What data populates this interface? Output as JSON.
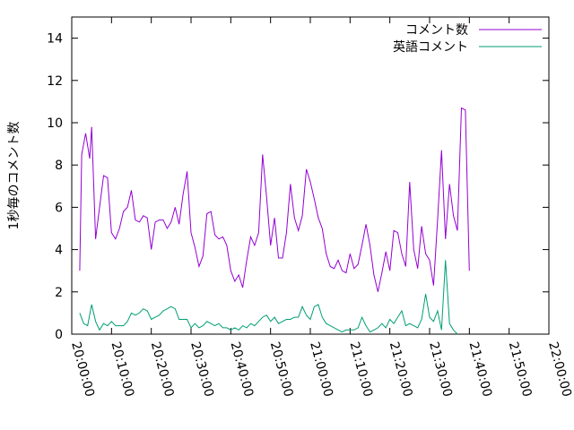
{
  "chart_data": {
    "type": "line",
    "ylabel": "1秒毎のコメント数",
    "xlabel": "",
    "title": "",
    "xlim": [
      "20:00:00",
      "22:00:00"
    ],
    "ylim": [
      0,
      15
    ],
    "x_ticks": [
      "20:00:00",
      "20:10:00",
      "20:20:00",
      "20:30:00",
      "20:40:00",
      "20:50:00",
      "21:00:00",
      "21:10:00",
      "21:20:00",
      "21:30:00",
      "21:40:00",
      "21:50:00",
      "22:00:00"
    ],
    "y_ticks": [
      0,
      2,
      4,
      6,
      8,
      10,
      12,
      14
    ],
    "grid": false,
    "legend_position": "top-right",
    "series": [
      {
        "name": "コメント数",
        "color": "#9400d3",
        "points": [
          [
            "20:02:00",
            3.0
          ],
          [
            "20:02:30",
            8.5
          ],
          [
            "20:03:30",
            9.5
          ],
          [
            "20:04:30",
            8.3
          ],
          [
            "20:05:00",
            9.8
          ],
          [
            "20:06:00",
            4.5
          ],
          [
            "20:07:00",
            6.0
          ],
          [
            "20:08:00",
            7.5
          ],
          [
            "20:09:00",
            7.4
          ],
          [
            "20:10:00",
            4.8
          ],
          [
            "20:11:00",
            4.5
          ],
          [
            "20:12:00",
            5.0
          ],
          [
            "20:13:00",
            5.8
          ],
          [
            "20:14:00",
            6.0
          ],
          [
            "20:15:00",
            6.8
          ],
          [
            "20:16:00",
            5.4
          ],
          [
            "20:17:00",
            5.3
          ],
          [
            "20:18:00",
            5.6
          ],
          [
            "20:19:00",
            5.5
          ],
          [
            "20:20:00",
            4.0
          ],
          [
            "20:21:00",
            5.3
          ],
          [
            "20:22:00",
            5.4
          ],
          [
            "20:23:00",
            5.4
          ],
          [
            "20:24:00",
            5.0
          ],
          [
            "20:25:00",
            5.3
          ],
          [
            "20:26:00",
            6.0
          ],
          [
            "20:27:00",
            5.2
          ],
          [
            "20:28:00",
            6.6
          ],
          [
            "20:29:00",
            7.7
          ],
          [
            "20:30:00",
            4.8
          ],
          [
            "20:31:00",
            4.1
          ],
          [
            "20:32:00",
            3.2
          ],
          [
            "20:33:00",
            3.7
          ],
          [
            "20:34:00",
            5.7
          ],
          [
            "20:35:00",
            5.8
          ],
          [
            "20:36:00",
            4.7
          ],
          [
            "20:37:00",
            4.5
          ],
          [
            "20:38:00",
            4.6
          ],
          [
            "20:39:00",
            4.2
          ],
          [
            "20:40:00",
            3.0
          ],
          [
            "20:41:00",
            2.5
          ],
          [
            "20:42:00",
            2.8
          ],
          [
            "20:43:00",
            2.2
          ],
          [
            "20:44:00",
            3.5
          ],
          [
            "20:45:00",
            4.6
          ],
          [
            "20:46:00",
            4.2
          ],
          [
            "20:47:00",
            4.8
          ],
          [
            "20:48:00",
            8.5
          ],
          [
            "20:49:00",
            6.5
          ],
          [
            "20:50:00",
            4.2
          ],
          [
            "20:51:00",
            5.5
          ],
          [
            "20:52:00",
            3.6
          ],
          [
            "20:53:00",
            3.6
          ],
          [
            "20:54:00",
            4.8
          ],
          [
            "20:55:00",
            7.1
          ],
          [
            "20:56:00",
            5.5
          ],
          [
            "20:57:00",
            4.9
          ],
          [
            "20:58:00",
            5.6
          ],
          [
            "20:59:00",
            7.8
          ],
          [
            "21:00:00",
            7.2
          ],
          [
            "21:01:00",
            6.4
          ],
          [
            "21:02:00",
            5.5
          ],
          [
            "21:03:00",
            5.0
          ],
          [
            "21:04:00",
            3.8
          ],
          [
            "21:05:00",
            3.2
          ],
          [
            "21:06:00",
            3.1
          ],
          [
            "21:07:00",
            3.5
          ],
          [
            "21:08:00",
            3.0
          ],
          [
            "21:09:00",
            2.9
          ],
          [
            "21:10:00",
            3.8
          ],
          [
            "21:11:00",
            3.1
          ],
          [
            "21:12:00",
            3.3
          ],
          [
            "21:13:00",
            4.2
          ],
          [
            "21:14:00",
            5.2
          ],
          [
            "21:15:00",
            4.2
          ],
          [
            "21:16:00",
            2.8
          ],
          [
            "21:17:00",
            2.0
          ],
          [
            "21:18:00",
            2.9
          ],
          [
            "21:19:00",
            3.9
          ],
          [
            "21:20:00",
            3.0
          ],
          [
            "21:21:00",
            4.9
          ],
          [
            "21:22:00",
            4.8
          ],
          [
            "21:23:00",
            3.8
          ],
          [
            "21:24:00",
            3.2
          ],
          [
            "21:25:00",
            7.2
          ],
          [
            "21:26:00",
            4.0
          ],
          [
            "21:27:00",
            3.1
          ],
          [
            "21:28:00",
            5.1
          ],
          [
            "21:29:00",
            3.8
          ],
          [
            "21:30:00",
            3.5
          ],
          [
            "21:31:00",
            2.3
          ],
          [
            "21:32:00",
            5.4
          ],
          [
            "21:33:00",
            8.7
          ],
          [
            "21:34:00",
            4.5
          ],
          [
            "21:35:00",
            7.1
          ],
          [
            "21:36:00",
            5.6
          ],
          [
            "21:37:00",
            4.9
          ],
          [
            "21:38:00",
            10.7
          ],
          [
            "21:39:00",
            10.6
          ],
          [
            "21:40:00",
            3.0
          ]
        ]
      },
      {
        "name": "英語コメント",
        "color": "#009e73",
        "points": [
          [
            "20:02:00",
            1.0
          ],
          [
            "20:03:00",
            0.5
          ],
          [
            "20:04:00",
            0.4
          ],
          [
            "20:05:00",
            1.4
          ],
          [
            "20:06:00",
            0.6
          ],
          [
            "20:07:00",
            0.2
          ],
          [
            "20:08:00",
            0.5
          ],
          [
            "20:09:00",
            0.4
          ],
          [
            "20:10:00",
            0.6
          ],
          [
            "20:11:00",
            0.4
          ],
          [
            "20:12:00",
            0.4
          ],
          [
            "20:13:00",
            0.4
          ],
          [
            "20:14:00",
            0.6
          ],
          [
            "20:15:00",
            1.0
          ],
          [
            "20:16:00",
            0.9
          ],
          [
            "20:17:00",
            1.0
          ],
          [
            "20:18:00",
            1.2
          ],
          [
            "20:19:00",
            1.1
          ],
          [
            "20:20:00",
            0.7
          ],
          [
            "20:21:00",
            0.8
          ],
          [
            "20:22:00",
            0.9
          ],
          [
            "20:23:00",
            1.1
          ],
          [
            "20:24:00",
            1.2
          ],
          [
            "20:25:00",
            1.3
          ],
          [
            "20:26:00",
            1.2
          ],
          [
            "20:27:00",
            0.7
          ],
          [
            "20:28:00",
            0.7
          ],
          [
            "20:29:00",
            0.7
          ],
          [
            "20:30:00",
            0.3
          ],
          [
            "20:31:00",
            0.5
          ],
          [
            "20:32:00",
            0.3
          ],
          [
            "20:33:00",
            0.4
          ],
          [
            "20:34:00",
            0.6
          ],
          [
            "20:35:00",
            0.5
          ],
          [
            "20:36:00",
            0.4
          ],
          [
            "20:37:00",
            0.5
          ],
          [
            "20:38:00",
            0.3
          ],
          [
            "20:39:00",
            0.3
          ],
          [
            "20:40:00",
            0.2
          ],
          [
            "20:41:00",
            0.3
          ],
          [
            "20:42:00",
            0.2
          ],
          [
            "20:43:00",
            0.4
          ],
          [
            "20:44:00",
            0.3
          ],
          [
            "20:45:00",
            0.5
          ],
          [
            "20:46:00",
            0.4
          ],
          [
            "20:47:00",
            0.6
          ],
          [
            "20:48:00",
            0.8
          ],
          [
            "20:49:00",
            0.9
          ],
          [
            "20:50:00",
            0.6
          ],
          [
            "20:51:00",
            0.8
          ],
          [
            "20:52:00",
            0.5
          ],
          [
            "20:53:00",
            0.6
          ],
          [
            "20:54:00",
            0.7
          ],
          [
            "20:55:00",
            0.7
          ],
          [
            "20:56:00",
            0.8
          ],
          [
            "20:57:00",
            0.8
          ],
          [
            "20:58:00",
            1.3
          ],
          [
            "20:59:00",
            0.9
          ],
          [
            "21:00:00",
            0.7
          ],
          [
            "21:01:00",
            1.3
          ],
          [
            "21:02:00",
            1.4
          ],
          [
            "21:03:00",
            0.8
          ],
          [
            "21:04:00",
            0.5
          ],
          [
            "21:05:00",
            0.4
          ],
          [
            "21:06:00",
            0.3
          ],
          [
            "21:07:00",
            0.2
          ],
          [
            "21:08:00",
            0.1
          ],
          [
            "21:09:00",
            0.2
          ],
          [
            "21:10:00",
            0.2
          ],
          [
            "21:11:00",
            0.2
          ],
          [
            "21:12:00",
            0.3
          ],
          [
            "21:13:00",
            0.8
          ],
          [
            "21:14:00",
            0.4
          ],
          [
            "21:15:00",
            0.1
          ],
          [
            "21:16:00",
            0.2
          ],
          [
            "21:17:00",
            0.3
          ],
          [
            "21:18:00",
            0.5
          ],
          [
            "21:19:00",
            0.3
          ],
          [
            "21:20:00",
            0.7
          ],
          [
            "21:21:00",
            0.5
          ],
          [
            "21:22:00",
            0.8
          ],
          [
            "21:23:00",
            1.1
          ],
          [
            "21:24:00",
            0.4
          ],
          [
            "21:25:00",
            0.5
          ],
          [
            "21:26:00",
            0.4
          ],
          [
            "21:27:00",
            0.3
          ],
          [
            "21:28:00",
            0.7
          ],
          [
            "21:29:00",
            1.9
          ],
          [
            "21:30:00",
            0.8
          ],
          [
            "21:31:00",
            0.6
          ],
          [
            "21:32:00",
            1.1
          ],
          [
            "21:33:00",
            0.2
          ],
          [
            "21:34:00",
            3.5
          ],
          [
            "21:35:00",
            0.5
          ],
          [
            "21:36:00",
            0.2
          ],
          [
            "21:37:00",
            0.0
          ]
        ]
      }
    ]
  }
}
